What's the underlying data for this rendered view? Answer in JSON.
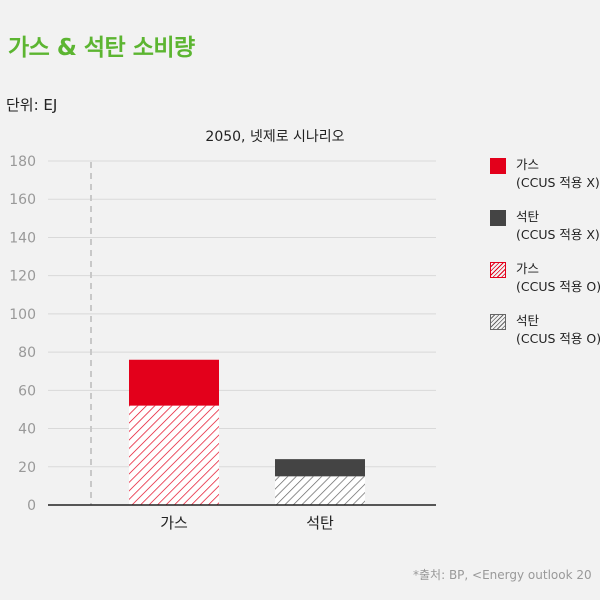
{
  "title": "가스 & 석탄 소비량",
  "unit": "단위: EJ",
  "source": "*출처: BP, <Energy outlook 20",
  "colors": {
    "title_green": "#5cb531",
    "gas_red": "#e3001b",
    "coal_dark": "#444444",
    "coal_hatch": "#666666"
  },
  "legend": [
    {
      "line1": "가스",
      "line2": "(CCUS 적용 X)",
      "style": "solid-red"
    },
    {
      "line1": "석탄",
      "line2": "(CCUS 적용 X)",
      "style": "solid-gray"
    },
    {
      "line1": "가스",
      "line2": "(CCUS 적용 O)",
      "style": "hatch-red"
    },
    {
      "line1": "석탄",
      "line2": "(CCUS 적용 O)",
      "style": "hatch-gray"
    }
  ],
  "chart_data": {
    "type": "bar",
    "stacked": true,
    "title": "2050, 넷제로 시나리오",
    "categories": [
      "가스",
      "석탄"
    ],
    "series": [
      {
        "name": "가스 (CCUS 적용 O)",
        "values": [
          52,
          0
        ],
        "style": "hatch-red"
      },
      {
        "name": "가스 (CCUS 적용 X)",
        "values": [
          24,
          0
        ],
        "style": "solid-red"
      },
      {
        "name": "석탄 (CCUS 적용 O)",
        "values": [
          0,
          15
        ],
        "style": "hatch-gray"
      },
      {
        "name": "석탄 (CCUS 적용 X)",
        "values": [
          0,
          9
        ],
        "style": "solid-gray"
      }
    ],
    "ylim": [
      0,
      180
    ],
    "yticks": [
      0,
      20,
      40,
      60,
      80,
      100,
      120,
      140,
      160,
      180
    ],
    "grid": true,
    "legend_position": "right"
  }
}
